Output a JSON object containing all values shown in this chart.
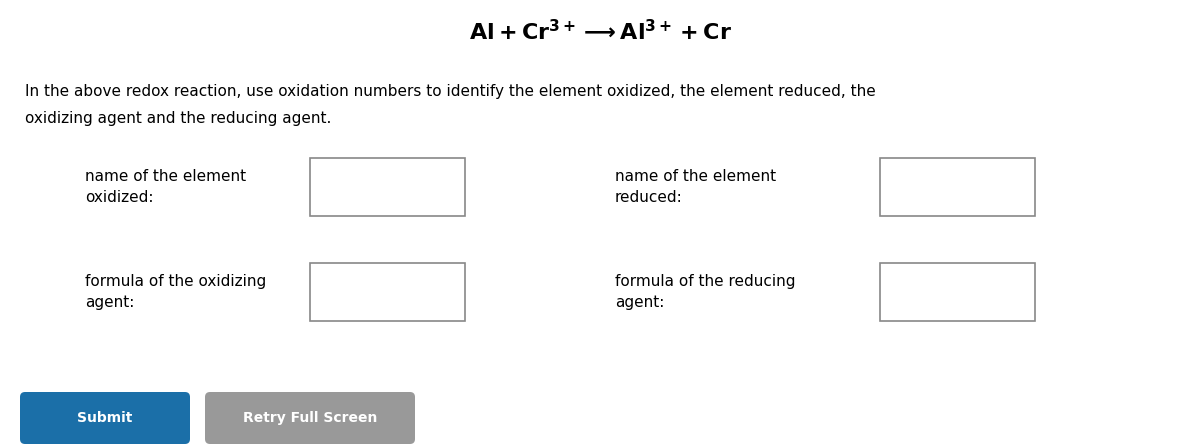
{
  "bg_color": "#ffffff",
  "title_equation": "Al + Cr³⁺—→Al³⁺ + Cr",
  "instruction_line1": "In the above redox reaction, use oxidation numbers to identify the element oxidized, the element reduced, the",
  "instruction_line2": "oxidizing agent and the reducing agent.",
  "label1": "name of the element\noxidized:",
  "label2": "name of the element\nreduced:",
  "label3": "formula of the oxidizing\nagent:",
  "label4": "formula of the reducing\nagent:",
  "box_color": "#ffffff",
  "box_edge_color": "#888888",
  "text_color": "#000000",
  "button1_color": "#1b6fa8",
  "button2_color": "#999999",
  "button1_text": "Submit",
  "button2_text": "Retry Full Screen"
}
